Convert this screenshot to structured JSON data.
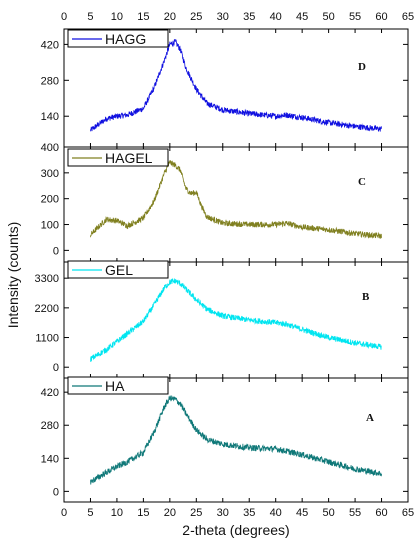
{
  "chart_data": [
    {
      "type": "line",
      "panel_letter": "D",
      "series": [
        {
          "name": "HAGG",
          "color": "#1010e0",
          "x_range": [
            5,
            60
          ],
          "x": [
            5,
            8,
            10,
            12,
            15,
            17,
            19,
            20,
            21,
            22,
            23,
            25,
            27,
            30,
            35,
            40,
            42,
            45,
            50,
            55,
            60
          ],
          "values": [
            85,
            130,
            140,
            145,
            170,
            250,
            360,
            420,
            430,
            400,
            330,
            245,
            190,
            165,
            150,
            140,
            145,
            135,
            115,
            100,
            90
          ]
        }
      ],
      "yticks": [
        140,
        280,
        420
      ],
      "ylim": [
        20,
        480
      ],
      "legend": "top-left"
    },
    {
      "type": "line",
      "panel_letter": "C",
      "series": [
        {
          "name": "HAGEL",
          "color": "#808020",
          "x_range": [
            5,
            60
          ],
          "x": [
            5,
            7,
            8,
            10,
            12,
            15,
            17,
            19,
            20,
            21,
            22,
            23,
            24,
            25,
            26,
            27,
            30,
            35,
            40,
            42,
            45,
            50,
            55,
            60
          ],
          "values": [
            60,
            100,
            120,
            115,
            95,
            125,
            190,
            300,
            340,
            330,
            310,
            240,
            220,
            225,
            170,
            130,
            105,
            100,
            100,
            105,
            90,
            80,
            65,
            55
          ]
        }
      ],
      "yticks": [
        0,
        100,
        200,
        300,
        400
      ],
      "ylim": [
        -45,
        400
      ],
      "legend": "top-left"
    },
    {
      "type": "line",
      "panel_letter": "B",
      "series": [
        {
          "name": "GEL",
          "color": "#00e5f0",
          "x_range": [
            5,
            60
          ],
          "x": [
            5,
            8,
            10,
            12,
            15,
            17,
            19,
            20,
            21,
            22,
            23,
            25,
            27,
            30,
            35,
            40,
            42,
            45,
            50,
            55,
            60
          ],
          "values": [
            300,
            650,
            950,
            1250,
            1700,
            2300,
            2950,
            3150,
            3200,
            3100,
            2900,
            2500,
            2150,
            1900,
            1750,
            1650,
            1600,
            1400,
            1100,
            900,
            750
          ]
        }
      ],
      "yticks": [
        0,
        1100,
        2200,
        3300
      ],
      "ylim": [
        -400,
        3900
      ],
      "legend": "top-left"
    },
    {
      "type": "line",
      "panel_letter": "A",
      "series": [
        {
          "name": "HA",
          "color": "#0f7878",
          "x_range": [
            5,
            60
          ],
          "x": [
            5,
            8,
            10,
            12,
            15,
            17,
            19,
            20,
            21,
            22,
            23,
            25,
            27,
            30,
            35,
            40,
            42,
            45,
            50,
            55,
            60
          ],
          "values": [
            40,
            80,
            105,
            125,
            165,
            250,
            360,
            395,
            390,
            370,
            330,
            260,
            220,
            200,
            185,
            180,
            170,
            155,
            125,
            95,
            75
          ]
        }
      ],
      "yticks": [
        0,
        140,
        280,
        420
      ],
      "ylim": [
        -45,
        480
      ],
      "legend": "top-left"
    }
  ],
  "x_axis": {
    "label": "2-theta (degrees)",
    "ticks": [
      0,
      5,
      10,
      15,
      20,
      25,
      30,
      35,
      40,
      45,
      50,
      55,
      60,
      65
    ],
    "range": [
      0,
      65
    ]
  },
  "y_axis": {
    "label": "Intensity (counts)"
  }
}
